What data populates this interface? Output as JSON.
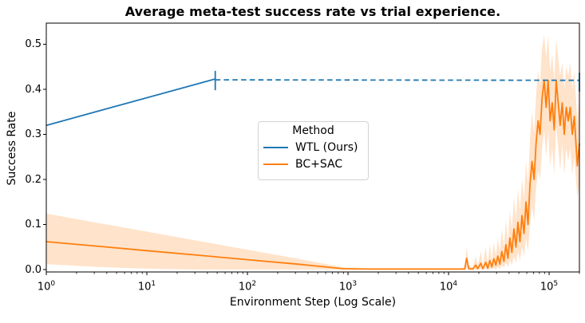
{
  "title": "Average meta-test success rate vs trial experience.",
  "chart_data": {
    "type": "line",
    "title": "Average meta-test success rate vs trial experience.",
    "xlabel": "Environment Step (Log Scale)",
    "ylabel": "Success Rate",
    "x_scale": "log10",
    "xlim": [
      1,
      200000
    ],
    "xlim_log10": [
      0,
      5.301
    ],
    "ylim": [
      -0.005,
      0.547
    ],
    "grid": false,
    "x_ticks": [
      {
        "base": "10",
        "exp": "0",
        "log10": 0
      },
      {
        "base": "10",
        "exp": "1",
        "log10": 1
      },
      {
        "base": "10",
        "exp": "2",
        "log10": 2
      },
      {
        "base": "10",
        "exp": "3",
        "log10": 3
      },
      {
        "base": "10",
        "exp": "4",
        "log10": 4
      },
      {
        "base": "10",
        "exp": "5",
        "log10": 5
      }
    ],
    "y_ticks": [
      {
        "label": "0.0",
        "value": 0.0
      },
      {
        "label": "0.1",
        "value": 0.1
      },
      {
        "label": "0.2",
        "value": 0.2
      },
      {
        "label": "0.3",
        "value": 0.3
      },
      {
        "label": "0.4",
        "value": 0.4
      },
      {
        "label": "0.5",
        "value": 0.5
      }
    ],
    "legend": {
      "title": "Method",
      "position": "center"
    },
    "series": [
      {
        "name": "WTL (Ours)",
        "color": "#1f77b4",
        "line_style": "solid then dashed",
        "solid_points_log10x": [
          [
            0,
            0.32
          ],
          [
            1.68,
            0.423
          ]
        ],
        "dashed_points_log10x": [
          [
            1.68,
            0.421
          ],
          [
            5.301,
            0.42
          ]
        ],
        "error_bars": [
          {
            "log10x": 1.68,
            "lo": 0.398,
            "hi": 0.441
          },
          {
            "log10x": 5.301,
            "lo": 0.395,
            "hi": 0.437
          }
        ]
      },
      {
        "name": "BC+SAC",
        "color": "#ff7f0e",
        "band_color": "rgba(255,127,14,0.22)",
        "line_style": "solid with shaded band",
        "points_log10x_y_lo_hi": [
          [
            0.0,
            0.062,
            0.012,
            0.124
          ],
          [
            0.5,
            0.052,
            0.006,
            0.104
          ],
          [
            1.0,
            0.042,
            0.002,
            0.084
          ],
          [
            1.5,
            0.032,
            0.0,
            0.064
          ],
          [
            2.0,
            0.022,
            0.0,
            0.044
          ],
          [
            2.5,
            0.012,
            0.0,
            0.024
          ],
          [
            2.95,
            0.002,
            0.0,
            0.005
          ],
          [
            3.2,
            0.001,
            0.0,
            0.003
          ],
          [
            3.6,
            0.001,
            0.0,
            0.003
          ],
          [
            4.0,
            0.001,
            0.0,
            0.003
          ],
          [
            4.1,
            0.001,
            0.0,
            0.003
          ],
          [
            4.16,
            0.001,
            0.0,
            0.004
          ],
          [
            4.18,
            0.025,
            0.004,
            0.05
          ],
          [
            4.2,
            0.002,
            0.0,
            0.01
          ],
          [
            4.24,
            0.001,
            0.0,
            0.004
          ],
          [
            4.27,
            0.01,
            0.0,
            0.03
          ],
          [
            4.29,
            0.002,
            0.0,
            0.008
          ],
          [
            4.32,
            0.014,
            0.002,
            0.04
          ],
          [
            4.34,
            0.002,
            0.0,
            0.01
          ],
          [
            4.37,
            0.016,
            0.002,
            0.05
          ],
          [
            4.39,
            0.003,
            0.0,
            0.012
          ],
          [
            4.41,
            0.02,
            0.003,
            0.055
          ],
          [
            4.43,
            0.006,
            0.0,
            0.02
          ],
          [
            4.45,
            0.024,
            0.004,
            0.06
          ],
          [
            4.47,
            0.01,
            0.0,
            0.03
          ],
          [
            4.49,
            0.03,
            0.006,
            0.07
          ],
          [
            4.51,
            0.012,
            0.002,
            0.04
          ],
          [
            4.53,
            0.04,
            0.01,
            0.09
          ],
          [
            4.55,
            0.018,
            0.004,
            0.05
          ],
          [
            4.57,
            0.055,
            0.015,
            0.11
          ],
          [
            4.59,
            0.025,
            0.006,
            0.06
          ],
          [
            4.61,
            0.07,
            0.02,
            0.13
          ],
          [
            4.63,
            0.038,
            0.01,
            0.09
          ],
          [
            4.65,
            0.09,
            0.03,
            0.16
          ],
          [
            4.67,
            0.05,
            0.015,
            0.11
          ],
          [
            4.69,
            0.105,
            0.04,
            0.18
          ],
          [
            4.71,
            0.062,
            0.02,
            0.13
          ],
          [
            4.73,
            0.12,
            0.05,
            0.2
          ],
          [
            4.75,
            0.08,
            0.03,
            0.16
          ],
          [
            4.77,
            0.15,
            0.07,
            0.24
          ],
          [
            4.79,
            0.1,
            0.04,
            0.19
          ],
          [
            4.81,
            0.19,
            0.1,
            0.29
          ],
          [
            4.83,
            0.24,
            0.14,
            0.35
          ],
          [
            4.85,
            0.2,
            0.11,
            0.3
          ],
          [
            4.87,
            0.28,
            0.18,
            0.39
          ],
          [
            4.89,
            0.33,
            0.22,
            0.44
          ],
          [
            4.91,
            0.3,
            0.2,
            0.41
          ],
          [
            4.93,
            0.38,
            0.27,
            0.49
          ],
          [
            4.95,
            0.42,
            0.31,
            0.52
          ],
          [
            4.97,
            0.36,
            0.25,
            0.47
          ],
          [
            4.99,
            0.42,
            0.31,
            0.52
          ],
          [
            5.01,
            0.33,
            0.23,
            0.44
          ],
          [
            5.03,
            0.37,
            0.27,
            0.48
          ],
          [
            5.05,
            0.31,
            0.21,
            0.42
          ],
          [
            5.07,
            0.42,
            0.32,
            0.51
          ],
          [
            5.09,
            0.37,
            0.27,
            0.47
          ],
          [
            5.11,
            0.32,
            0.22,
            0.43
          ],
          [
            5.13,
            0.37,
            0.28,
            0.46
          ],
          [
            5.15,
            0.3,
            0.21,
            0.4
          ],
          [
            5.17,
            0.36,
            0.27,
            0.45
          ],
          [
            5.19,
            0.33,
            0.24,
            0.43
          ],
          [
            5.21,
            0.36,
            0.27,
            0.46
          ],
          [
            5.23,
            0.3,
            0.21,
            0.4
          ],
          [
            5.25,
            0.34,
            0.25,
            0.44
          ],
          [
            5.28,
            0.23,
            0.16,
            0.33
          ],
          [
            5.301,
            0.28,
            0.19,
            0.38
          ]
        ]
      }
    ],
    "colors": {
      "axes": "#000000",
      "background": "#ffffff"
    }
  }
}
